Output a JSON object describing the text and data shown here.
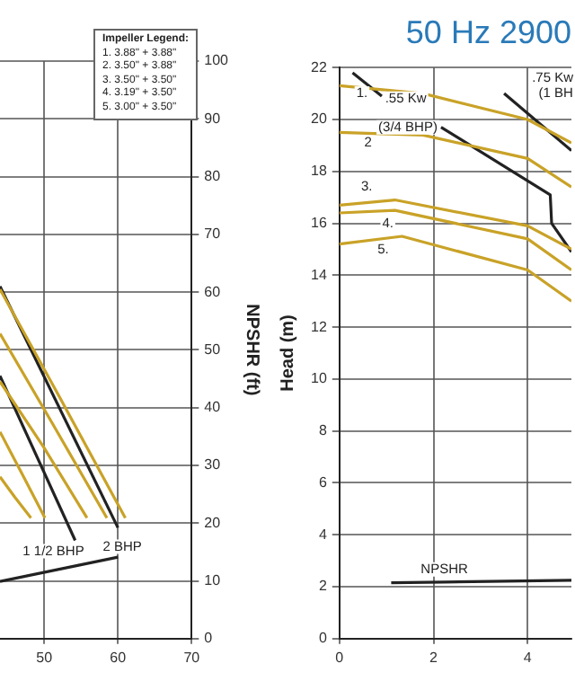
{
  "chart_data": [
    {
      "type": "line",
      "ylabel": "NPSHR (ft)",
      "xlim": [
        44,
        70
      ],
      "xticks": [
        50,
        60,
        70
      ],
      "ylim": [
        0,
        100
      ],
      "yticks": [
        0,
        10,
        20,
        30,
        40,
        50,
        60,
        70,
        80,
        90,
        100
      ],
      "grid": true,
      "marker": "none",
      "legend": false,
      "series": [
        {
          "color": "#c9a227",
          "x": [
            44,
            52,
            61
          ],
          "values": [
            60.5,
            42,
            20.9
          ]
        },
        {
          "color": "#c9a227",
          "x": [
            44,
            51,
            58.5
          ],
          "values": [
            52.8,
            37.5,
            20.9
          ]
        },
        {
          "color": "#c9a227",
          "x": [
            44,
            50,
            55.8
          ],
          "values": [
            44.5,
            33,
            20.9
          ]
        },
        {
          "color": "#c9a227",
          "x": [
            44,
            47,
            50.1
          ],
          "values": [
            35.8,
            28.5,
            20.9
          ]
        },
        {
          "color": "#c9a227",
          "x": [
            44,
            46,
            48.2
          ],
          "values": [
            28,
            24.5,
            20.9
          ]
        },
        {
          "color": "#222222",
          "x": [
            44,
            60
          ],
          "values": [
            61,
            19.2
          ]
        },
        {
          "color": "#222222",
          "x": [
            44,
            54.2
          ],
          "values": [
            45.5,
            17
          ]
        },
        {
          "color": "#222222",
          "x": [
            44,
            60
          ],
          "values": [
            9.9,
            14.1
          ]
        }
      ],
      "annotations": [
        "Impeller Legend:",
        "1.  3.88\" + 3.88\"",
        "2.  3.50\" + 3.88\"",
        "3.  3.50\" + 3.50\"",
        "4.  3.19\" + 3.50\"",
        "5.  3.00\" + 3.50\"",
        {
          "text": "1 1/2 BHP",
          "x": 54.2,
          "y": 17
        },
        {
          "text": "2 BHP",
          "x": 60.6,
          "y": 15.9
        }
      ]
    },
    {
      "type": "line",
      "title": "50 Hz 2900",
      "ylabel": "Head (m)",
      "xlim": [
        0,
        4.93
      ],
      "xticks": [
        0,
        2,
        4
      ],
      "ylim": [
        0,
        22
      ],
      "yticks": [
        0,
        2,
        4,
        6,
        8,
        10,
        12,
        14,
        16,
        18,
        20,
        22
      ],
      "grid": true,
      "marker": "none",
      "legend": false,
      "series": [
        {
          "color": "#c9a227",
          "x": [
            0,
            1.78,
            4,
            4.93
          ],
          "values": [
            21.3,
            21,
            20,
            19.1
          ]
        },
        {
          "color": "#c9a227",
          "x": [
            0,
            1.78,
            4,
            4.93
          ],
          "values": [
            19.5,
            19.4,
            18.5,
            17.4
          ]
        },
        {
          "color": "#c9a227",
          "x": [
            0,
            1.18,
            4,
            4.93
          ],
          "values": [
            16.7,
            16.9,
            15.9,
            15
          ]
        },
        {
          "color": "#c9a227",
          "x": [
            0,
            1.18,
            4,
            4.93
          ],
          "values": [
            16.4,
            16.5,
            15.4,
            14.2
          ]
        },
        {
          "color": "#c9a227",
          "x": [
            0,
            1.33,
            4,
            4.93
          ],
          "values": [
            15.2,
            15.5,
            14.2,
            13
          ]
        },
        {
          "color": "#222222",
          "x": [
            2.16,
            4.48,
            4.51,
            4.93
          ],
          "values": [
            19.7,
            17.1,
            16,
            14.9
          ]
        },
        {
          "color": "#222222",
          "x": [
            0.28,
            0.9
          ],
          "values": [
            21.8,
            20.9
          ]
        },
        {
          "color": "#222222",
          "x": [
            3.5,
            4.93
          ],
          "values": [
            21,
            18.8
          ]
        },
        {
          "color": "#222222",
          "x": [
            1.1,
            2.23,
            4.93
          ],
          "values": [
            2.15,
            2.18,
            2.25
          ]
        }
      ],
      "annotations": [
        {
          "text": "1.",
          "x": 0.48,
          "y": 21
        },
        {
          "text": "2",
          "x": 0.61,
          "y": 19.1
        },
        {
          "text": "3.",
          "x": 0.58,
          "y": 17.4
        },
        {
          "text": "4.",
          "x": 1.03,
          "y": 16
        },
        {
          "text": "5.",
          "x": 0.93,
          "y": 15
        },
        {
          "text": ".55 Kw",
          "x": 1.41,
          "y": 20.8
        },
        {
          "text": "(3/4 BHP)",
          "x": 2.16,
          "y": 19.7
        },
        {
          "text": ".75 Kw",
          "x": 4.6,
          "y": 21.6
        },
        {
          "text": "(1 BH",
          "x": 4.6,
          "y": 21
        },
        {
          "text": "NPSHR",
          "x": 2.23,
          "y": 2.18
        }
      ]
    }
  ]
}
